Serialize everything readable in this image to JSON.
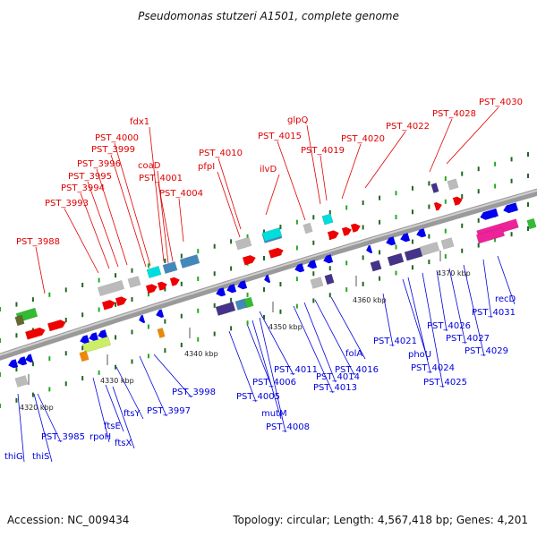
{
  "title": "Pseudomonas stutzeri A1501, complete genome",
  "footer": {
    "accession": "Accession: NC_009434",
    "summary": "Topology: circular; Length: 4,567,418 bp; Genes: 4,201"
  },
  "colors": {
    "forward_label": "#e00000",
    "reverse_label": "#0000dd",
    "backbone": "#888888",
    "forward_gene": "#ee0000",
    "reverse_gene": "#0000ee",
    "cog_green": "#33bb33",
    "cog_cyan": "#00dddd",
    "cog_grey": "#bbbbbb",
    "cog_steel": "#4488bb",
    "cog_purple": "#443388",
    "cog_magenta": "#ee2299",
    "cog_yellowgreen": "#ccee66",
    "cog_orange": "#ee8800"
  },
  "ticks": [
    "4320 kbp",
    "4330 kbp",
    "4340 kbp",
    "4350 kbp",
    "4360 kbp",
    "4370 kbp"
  ],
  "forward_labels": [
    "PST_3988",
    "PST_3993",
    "PST_3994",
    "PST_3995",
    "PST_3996",
    "PST_3999",
    "PST_4000",
    "fdx1",
    "coaD",
    "PST_4001",
    "PST_4004",
    "PST_4010",
    "pfpI",
    "ilvD",
    "PST_4015",
    "glpQ",
    "PST_4019",
    "PST_4020",
    "PST_4022",
    "PST_4028",
    "PST_4030"
  ],
  "reverse_labels": [
    "thiG",
    "thiS",
    "PST_3985",
    "rpoH",
    "ftsE",
    "ftsX",
    "ftsY",
    "PST_3997",
    "PST_3998",
    "PST_4005",
    "PST_4006",
    "mutM",
    "PST_4008",
    "PST_4011",
    "PST_4013",
    "PST_4014",
    "PST_4016",
    "folA",
    "PST_4021",
    "phoU",
    "PST_4024",
    "PST_4025",
    "PST_4026",
    "PST_4027",
    "PST_4029",
    "PST_4031",
    "recD"
  ]
}
